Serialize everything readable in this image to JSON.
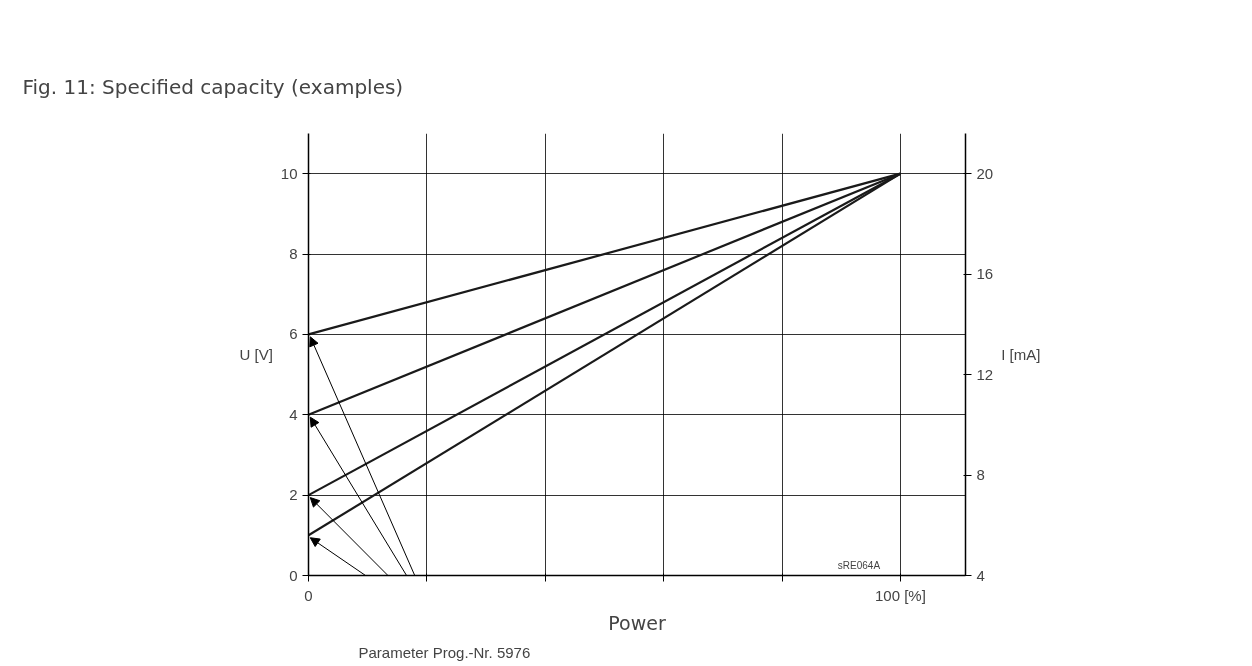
{
  "chart_data": {
    "type": "line",
    "title": "Fig. 11: Specified capacity (examples)",
    "xlabel": "Power",
    "ylabel": "U [V]",
    "y2label": "I [mA]",
    "x": [
      0,
      100
    ],
    "series": [
      {
        "color": "#1a1a1a",
        "values": [
          6,
          10
        ]
      },
      {
        "color": "#1a1a1a",
        "values": [
          4,
          10
        ]
      },
      {
        "color": "#1a1a1a",
        "values": [
          2,
          10
        ]
      },
      {
        "color": "#1a1a1a",
        "values": [
          1,
          10
        ]
      }
    ],
    "xlim": [
      0,
      111
    ],
    "ylim": [
      0,
      11
    ],
    "xticks": [
      0,
      {
        "value": 20,
        "label": null
      },
      {
        "value": 40,
        "label": null
      },
      {
        "value": 60,
        "label": null
      },
      {
        "value": 80,
        "label": null
      },
      {
        "value": 100,
        "label": "100 [%]"
      }
    ],
    "yticks": [
      0,
      2,
      4,
      6,
      8,
      10
    ],
    "y2lim": [
      4,
      21.6
    ],
    "y2ticks": [
      4,
      8,
      12,
      16,
      20
    ],
    "grid": true,
    "marker": "none",
    "line_style": "solid",
    "annotations": [
      "Parameter Prog.-Nr. 5976",
      "sRE064A"
    ]
  }
}
